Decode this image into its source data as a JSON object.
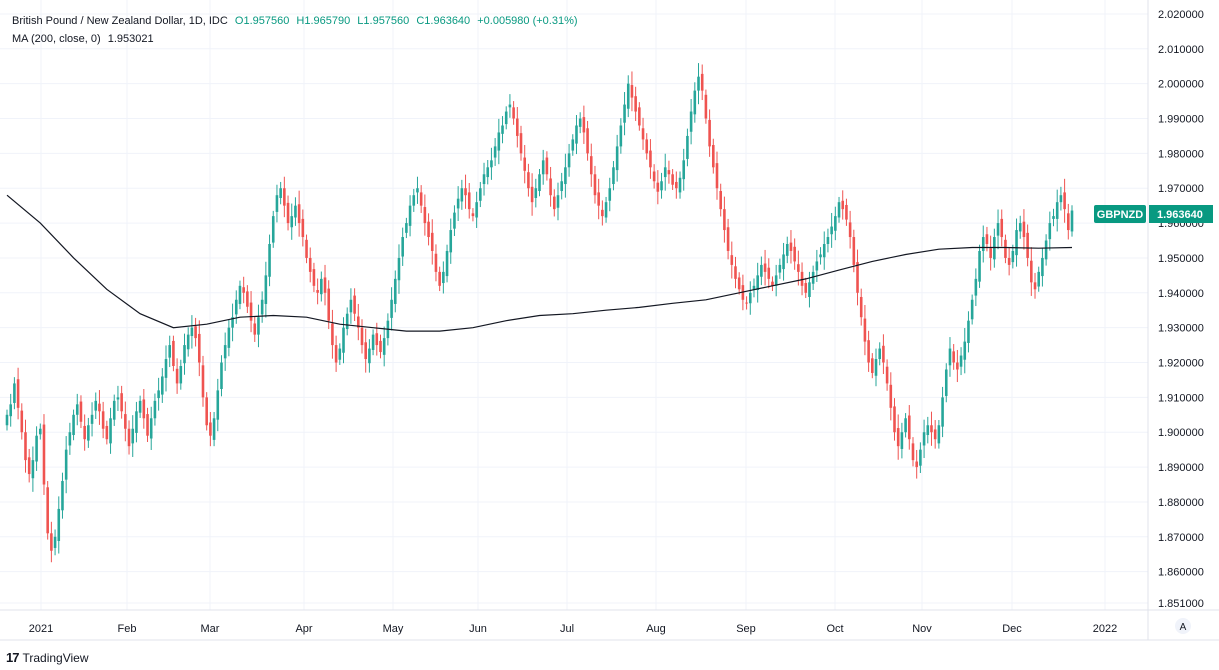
{
  "header": {
    "symbol_desc": "British Pound / New Zealand Dollar, 1D, IDC",
    "open": "O1.957560",
    "high": "H1.965790",
    "low": "L1.957560",
    "close": "C1.963640",
    "change": "+0.005980 (+0.31%)",
    "ma_label": "MA (200, close, 0)",
    "ma_value": "1.953021"
  },
  "footer": {
    "brand": "TradingView",
    "logo": "17"
  },
  "auto_scale_label": "A",
  "colors": {
    "up": "#26a69a",
    "down": "#ef5350",
    "ma": "#131722",
    "grid": "#f0f3fa",
    "badge": "#089981"
  },
  "chart_data": {
    "type": "candlestick",
    "symbol": "GBPNZD",
    "last_price": "1.963640",
    "y_ticks": [
      "2.020000",
      "2.010000",
      "2.000000",
      "1.990000",
      "1.980000",
      "1.970000",
      "1.960000",
      "1.950000",
      "1.940000",
      "1.930000",
      "1.920000",
      "1.910000",
      "1.900000",
      "1.890000",
      "1.880000",
      "1.870000",
      "1.860000",
      "1.851000"
    ],
    "x_ticks": [
      "2021",
      "Feb",
      "Mar",
      "Apr",
      "May",
      "Jun",
      "Jul",
      "Aug",
      "Sep",
      "Oct",
      "Nov",
      "Dec",
      "2022"
    ],
    "ylim": [
      1.849,
      2.024
    ],
    "closes": [
      1.905,
      1.908,
      1.914,
      1.907,
      1.9,
      1.892,
      1.888,
      1.892,
      1.899,
      1.901,
      1.885,
      1.871,
      1.866,
      1.87,
      1.878,
      1.886,
      1.895,
      1.9,
      1.905,
      1.908,
      1.903,
      1.898,
      1.902,
      1.905,
      1.909,
      1.906,
      1.901,
      1.898,
      1.904,
      1.909,
      1.91,
      1.906,
      1.901,
      1.896,
      1.901,
      1.906,
      1.909,
      1.904,
      1.899,
      1.904,
      1.909,
      1.912,
      1.916,
      1.921,
      1.925,
      1.919,
      1.914,
      1.919,
      1.925,
      1.928,
      1.93,
      1.927,
      1.92,
      1.91,
      1.902,
      1.899,
      1.904,
      1.912,
      1.92,
      1.925,
      1.93,
      1.933,
      1.938,
      1.942,
      1.94,
      1.936,
      1.932,
      1.928,
      1.933,
      1.938,
      1.945,
      1.954,
      1.962,
      1.968,
      1.97,
      1.965,
      1.96,
      1.962,
      1.965,
      1.96,
      1.956,
      1.95,
      1.946,
      1.942,
      1.94,
      1.944,
      1.94,
      1.932,
      1.925,
      1.92,
      1.924,
      1.93,
      1.934,
      1.938,
      1.934,
      1.93,
      1.925,
      1.921,
      1.924,
      1.928,
      1.925,
      1.923,
      1.927,
      1.932,
      1.938,
      1.944,
      1.95,
      1.956,
      1.96,
      1.965,
      1.968,
      1.97,
      1.965,
      1.96,
      1.956,
      1.952,
      1.946,
      1.942,
      1.946,
      1.952,
      1.958,
      1.963,
      1.967,
      1.97,
      1.968,
      1.964,
      1.962,
      1.966,
      1.97,
      1.974,
      1.976,
      1.978,
      1.982,
      1.986,
      1.988,
      1.992,
      1.994,
      1.99,
      1.985,
      1.98,
      1.975,
      1.97,
      1.966,
      1.97,
      1.974,
      1.978,
      1.974,
      1.968,
      1.964,
      1.968,
      1.972,
      1.976,
      1.98,
      1.984,
      1.988,
      1.99,
      1.986,
      1.98,
      1.974,
      1.968,
      1.965,
      1.962,
      1.966,
      1.97,
      1.976,
      1.982,
      1.988,
      1.994,
      2.0,
      1.996,
      1.992,
      1.988,
      1.984,
      1.98,
      1.976,
      1.972,
      1.969,
      1.972,
      1.976,
      1.974,
      1.971,
      1.97,
      1.973,
      1.978,
      1.985,
      1.992,
      1.998,
      2.002,
      1.998,
      1.99,
      1.982,
      1.976,
      1.97,
      1.964,
      1.958,
      1.952,
      1.948,
      1.944,
      1.941,
      1.938,
      1.937,
      1.94,
      1.942,
      1.945,
      1.948,
      1.946,
      1.944,
      1.942,
      1.945,
      1.948,
      1.951,
      1.954,
      1.952,
      1.949,
      1.946,
      1.942,
      1.94,
      1.943,
      1.946,
      1.949,
      1.951,
      1.954,
      1.956,
      1.959,
      1.962,
      1.966,
      1.964,
      1.961,
      1.956,
      1.948,
      1.94,
      1.933,
      1.926,
      1.92,
      1.917,
      1.921,
      1.924,
      1.92,
      1.914,
      1.907,
      1.9,
      1.896,
      1.9,
      1.904,
      1.898,
      1.892,
      1.89,
      1.895,
      1.9,
      1.902,
      1.9,
      1.898,
      1.902,
      1.91,
      1.918,
      1.924,
      1.92,
      1.918,
      1.922,
      1.926,
      1.932,
      1.938,
      1.944,
      1.952,
      1.956,
      1.954,
      1.95,
      1.956,
      1.96,
      1.956,
      1.95,
      1.948,
      1.952,
      1.958,
      1.96,
      1.956,
      1.95,
      1.943,
      1.941,
      1.946,
      1.95,
      1.955,
      1.96,
      1.962,
      1.966,
      1.968,
      1.964,
      1.958,
      1.9636
    ],
    "ma_points": [
      [
        0,
        1.968
      ],
      [
        20,
        1.96
      ],
      [
        40,
        1.95
      ],
      [
        60,
        1.941
      ],
      [
        80,
        1.934
      ],
      [
        100,
        1.93
      ],
      [
        120,
        1.931
      ],
      [
        140,
        1.933
      ],
      [
        160,
        1.9335
      ],
      [
        180,
        1.933
      ],
      [
        200,
        1.931
      ],
      [
        220,
        1.93
      ],
      [
        240,
        1.929
      ],
      [
        260,
        1.929
      ],
      [
        280,
        1.93
      ],
      [
        300,
        1.932
      ],
      [
        320,
        1.9335
      ],
      [
        340,
        1.934
      ],
      [
        360,
        1.935
      ],
      [
        380,
        1.9358
      ],
      [
        400,
        1.937
      ],
      [
        420,
        1.938
      ],
      [
        440,
        1.94
      ],
      [
        460,
        1.942
      ],
      [
        480,
        1.944
      ],
      [
        500,
        1.9465
      ],
      [
        520,
        1.949
      ],
      [
        540,
        1.951
      ],
      [
        560,
        1.9525
      ],
      [
        580,
        1.953
      ],
      [
        600,
        1.953
      ],
      [
        620,
        1.9528
      ],
      [
        640,
        1.953
      ]
    ],
    "xlabel": "",
    "ylabel": ""
  }
}
